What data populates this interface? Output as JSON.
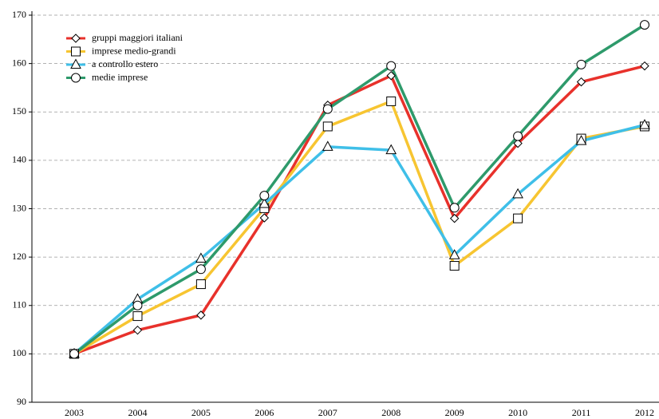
{
  "chart_data": {
    "type": "line",
    "categories": [
      "2003",
      "2004",
      "2005",
      "2006",
      "2007",
      "2008",
      "2009",
      "2010",
      "2011",
      "2012"
    ],
    "series": [
      {
        "name": "gruppi maggiori italiani",
        "color": "#e8312b",
        "marker": "diamond",
        "values": [
          100,
          104.9,
          108,
          128.1,
          151.4,
          157.5,
          128,
          143.5,
          156.2,
          159.5
        ]
      },
      {
        "name": "imprese medio-grandi",
        "color": "#f7c531",
        "marker": "square",
        "values": [
          100,
          107.8,
          114.4,
          130.1,
          147,
          152.2,
          118.2,
          128,
          144.5,
          147
        ]
      },
      {
        "name": "a controllo estero",
        "color": "#3fbfe8",
        "marker": "triangle",
        "values": [
          100,
          111.3,
          119.7,
          131,
          142.8,
          142.1,
          120.4,
          133,
          144,
          147.3
        ]
      },
      {
        "name": "medie imprese",
        "color": "#2e9a6b",
        "marker": "circle",
        "values": [
          100,
          110,
          117.5,
          132.7,
          150.6,
          159.5,
          130.2,
          145,
          159.8,
          168
        ]
      }
    ],
    "ylim": [
      90,
      170
    ],
    "yticks": [
      90,
      100,
      110,
      120,
      130,
      140,
      150,
      160,
      170
    ],
    "grid": true,
    "legend": "upper left"
  }
}
